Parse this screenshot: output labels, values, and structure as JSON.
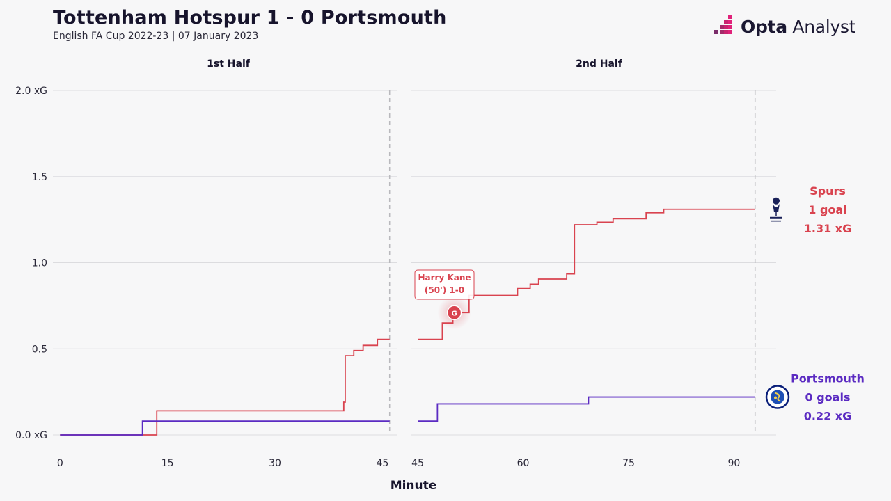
{
  "header": {
    "title": "Tottenham Hotspur 1 - 0 Portsmouth",
    "subtitle": "English FA Cup 2022-23 | 07 January 2023",
    "brand_bold": "Opta",
    "brand_rest": " Analyst"
  },
  "chart_data": {
    "type": "line",
    "title": "Tottenham Hotspur 1 - 0 Portsmouth",
    "subtitle": "English FA Cup 2022-23 | 07 January 2023",
    "xlabel": "Minute",
    "ylabel": "",
    "panels": [
      {
        "name": "1st Half",
        "xlim": [
          -1,
          47
        ],
        "xticks": [
          0,
          15,
          30,
          45
        ],
        "end_marker": 46
      },
      {
        "name": "2nd Half",
        "xlim": [
          44,
          96
        ],
        "xticks": [
          45,
          60,
          75,
          90
        ],
        "end_marker": 93
      }
    ],
    "ylim": [
      0,
      2.0
    ],
    "yticks": [
      {
        "value": 0,
        "label": "0.0 xG"
      },
      {
        "value": 0.5,
        "label": "0.5"
      },
      {
        "value": 1.0,
        "label": "1.0"
      },
      {
        "value": 1.5,
        "label": "1.5"
      },
      {
        "value": 2.0,
        "label": "2.0 xG"
      }
    ],
    "grid": true,
    "step": "post",
    "series": [
      {
        "name": "Spurs",
        "color": "#d9434f",
        "half1": [
          [
            0,
            0
          ],
          [
            13.5,
            0.14
          ],
          [
            39.5,
            0.14
          ],
          [
            39.6,
            0.19
          ],
          [
            39.8,
            0.46
          ],
          [
            41,
            0.49
          ],
          [
            42.3,
            0.52
          ],
          [
            44.3,
            0.555
          ],
          [
            46,
            0.555
          ]
        ],
        "half2": [
          [
            45,
            0.555
          ],
          [
            48.5,
            0.65
          ],
          [
            50,
            0.71
          ],
          [
            52.3,
            0.81
          ],
          [
            59.2,
            0.85
          ],
          [
            61,
            0.875
          ],
          [
            62.2,
            0.905
          ],
          [
            66.2,
            0.935
          ],
          [
            67.3,
            1.22
          ],
          [
            70.5,
            1.235
          ],
          [
            72.8,
            1.255
          ],
          [
            77.5,
            1.29
          ],
          [
            80,
            1.31
          ],
          [
            93,
            1.31
          ]
        ],
        "summary": [
          "Spurs",
          "1 goal",
          "1.31 xG"
        ]
      },
      {
        "name": "Portsmouth",
        "color": "#5b2bc2",
        "half1": [
          [
            0,
            0
          ],
          [
            11.5,
            0.08
          ],
          [
            46,
            0.08
          ]
        ],
        "half2": [
          [
            45,
            0.08
          ],
          [
            47.8,
            0.18
          ],
          [
            69.3,
            0.22
          ],
          [
            93,
            0.22
          ]
        ],
        "summary": [
          "Portsmouth",
          "0 goals",
          "0.22 xG"
        ]
      }
    ],
    "annotations": [
      {
        "team": "Spurs",
        "minute": 50,
        "xg": 0.71,
        "marker": "G",
        "label_lines": [
          "Harry Kane",
          "(50') 1-0"
        ]
      }
    ]
  }
}
